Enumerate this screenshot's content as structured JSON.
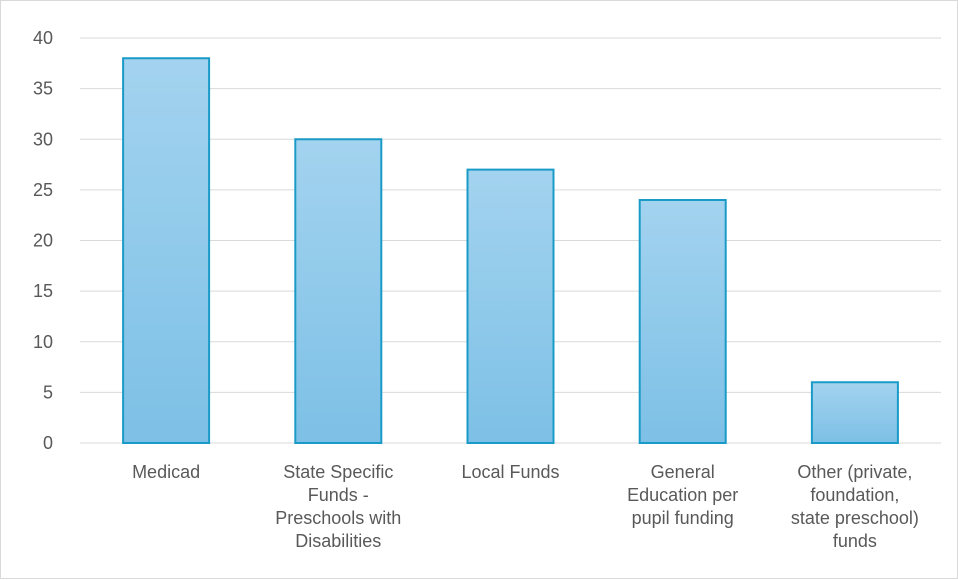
{
  "chart_data": {
    "type": "bar",
    "categories": [
      [
        "Medicad"
      ],
      [
        "State Specific",
        "Funds -",
        "Preschools with",
        "Disabilities"
      ],
      [
        "Local Funds"
      ],
      [
        "General",
        "Education per",
        "pupil funding"
      ],
      [
        "Other (private,",
        "foundation,",
        "state preschool)",
        "funds"
      ]
    ],
    "values": [
      38,
      30,
      27,
      24,
      6
    ],
    "ylim": [
      0,
      40
    ],
    "yticks": [
      0,
      5,
      10,
      15,
      20,
      25,
      30,
      35,
      40
    ],
    "grid": true,
    "colors": {
      "bar_top": "#a3d3ef",
      "bar_bottom": "#7dc0e6",
      "bar_stroke": "#1a9bc7",
      "grid": "#d9d9d9",
      "axis": "#d9d9d9",
      "text": "#595959"
    }
  }
}
